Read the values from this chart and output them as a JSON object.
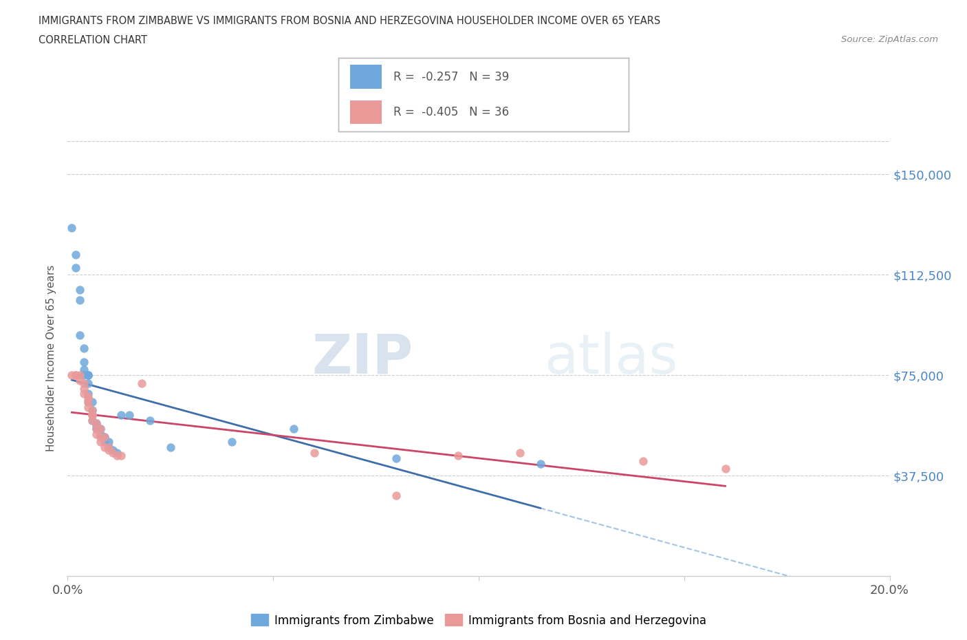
{
  "title_line1": "IMMIGRANTS FROM ZIMBABWE VS IMMIGRANTS FROM BOSNIA AND HERZEGOVINA HOUSEHOLDER INCOME OVER 65 YEARS",
  "title_line2": "CORRELATION CHART",
  "source_text": "Source: ZipAtlas.com",
  "ylabel": "Householder Income Over 65 years",
  "x_min": 0.0,
  "x_max": 0.2,
  "y_min": 0,
  "y_max": 162500,
  "y_ticks": [
    37500,
    75000,
    112500,
    150000
  ],
  "y_tick_labels": [
    "$37,500",
    "$75,000",
    "$112,500",
    "$150,000"
  ],
  "x_ticks": [
    0.0,
    0.05,
    0.1,
    0.15,
    0.2
  ],
  "x_tick_labels": [
    "0.0%",
    "",
    "",
    "",
    "20.0%"
  ],
  "legend_r1": "R =  -0.257   N = 39",
  "legend_r2": "R =  -0.405   N = 36",
  "zimbabwe_color": "#6fa8dc",
  "bosnia_color": "#ea9999",
  "trendline_zimbabwe_color": "#3d6eaa",
  "trendline_bosnia_color": "#cc4466",
  "trendline_ext_color": "#9fc5e8",
  "watermark_zip": "ZIP",
  "watermark_atlas": "atlas",
  "zimbabwe_x": [
    0.001,
    0.002,
    0.002,
    0.003,
    0.003,
    0.003,
    0.004,
    0.004,
    0.004,
    0.004,
    0.005,
    0.005,
    0.005,
    0.005,
    0.005,
    0.005,
    0.006,
    0.006,
    0.006,
    0.006,
    0.007,
    0.007,
    0.007,
    0.008,
    0.008,
    0.009,
    0.009,
    0.01,
    0.01,
    0.011,
    0.012,
    0.013,
    0.015,
    0.02,
    0.025,
    0.04,
    0.055,
    0.08,
    0.115
  ],
  "zimbabwe_y": [
    130000,
    120000,
    115000,
    107000,
    103000,
    90000,
    85000,
    80000,
    77000,
    75000,
    75000,
    75000,
    75000,
    72000,
    68000,
    65000,
    65000,
    62000,
    60000,
    58000,
    57000,
    56000,
    55000,
    55000,
    53000,
    52000,
    50000,
    50000,
    48000,
    47000,
    46000,
    60000,
    60000,
    58000,
    48000,
    50000,
    55000,
    44000,
    42000
  ],
  "bosnia_x": [
    0.001,
    0.002,
    0.002,
    0.003,
    0.003,
    0.004,
    0.004,
    0.004,
    0.005,
    0.005,
    0.005,
    0.005,
    0.006,
    0.006,
    0.006,
    0.006,
    0.007,
    0.007,
    0.007,
    0.008,
    0.008,
    0.008,
    0.009,
    0.009,
    0.01,
    0.01,
    0.011,
    0.012,
    0.013,
    0.018,
    0.06,
    0.08,
    0.095,
    0.11,
    0.14,
    0.16
  ],
  "bosnia_y": [
    75000,
    75000,
    75000,
    75000,
    73000,
    72000,
    70000,
    68000,
    67000,
    66000,
    65000,
    63000,
    62000,
    60000,
    60000,
    58000,
    57000,
    55000,
    53000,
    55000,
    52000,
    50000,
    52000,
    48000,
    47000,
    48000,
    46000,
    45000,
    45000,
    72000,
    46000,
    30000,
    45000,
    46000,
    43000,
    40000
  ]
}
